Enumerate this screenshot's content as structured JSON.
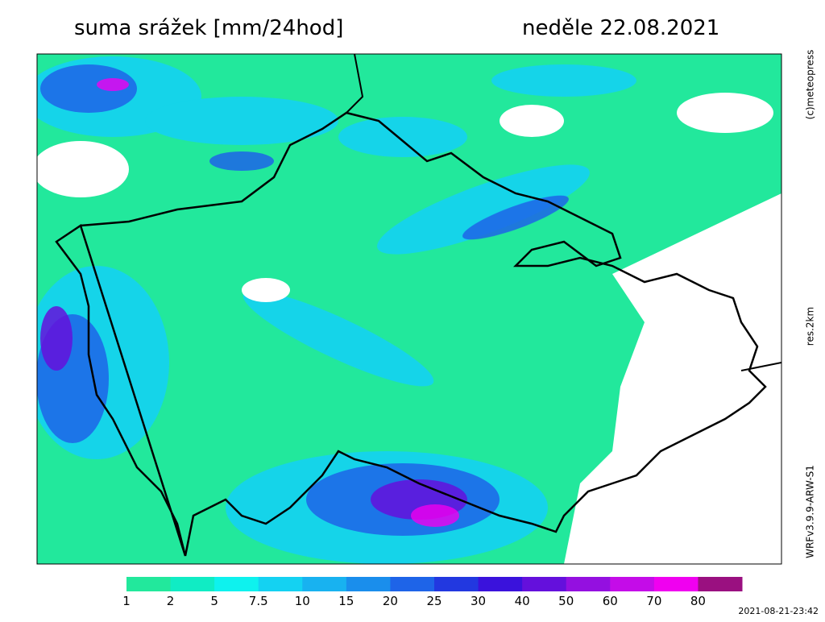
{
  "header": {
    "title": "suma srážek [mm/24hod]",
    "date": "neděle 22.08.2021"
  },
  "side_labels": {
    "copyright": "(c)meteopress",
    "resolution": "res.2km",
    "model": "WRFv3.9.9-ARW-S1"
  },
  "legend": {
    "items": [
      {
        "value": 1,
        "color": "#22e89c"
      },
      {
        "value": 2,
        "color": "#10ecc4"
      },
      {
        "value": 5,
        "color": "#0ef2ee"
      },
      {
        "value": 7.5,
        "color": "#14d2f2"
      },
      {
        "value": 10,
        "color": "#18b2f0"
      },
      {
        "value": 15,
        "color": "#1a8eec"
      },
      {
        "value": 20,
        "color": "#1e64e8"
      },
      {
        "value": 25,
        "color": "#2238e0"
      },
      {
        "value": 30,
        "color": "#3a12dc"
      },
      {
        "value": 40,
        "color": "#6410dc"
      },
      {
        "value": 50,
        "color": "#9410e0"
      },
      {
        "value": 60,
        "color": "#c40ce8"
      },
      {
        "value": 70,
        "color": "#f000f0"
      },
      {
        "value": 80,
        "color": "#9a1080"
      }
    ]
  },
  "timestamp": "2021-08-21-23:42"
}
